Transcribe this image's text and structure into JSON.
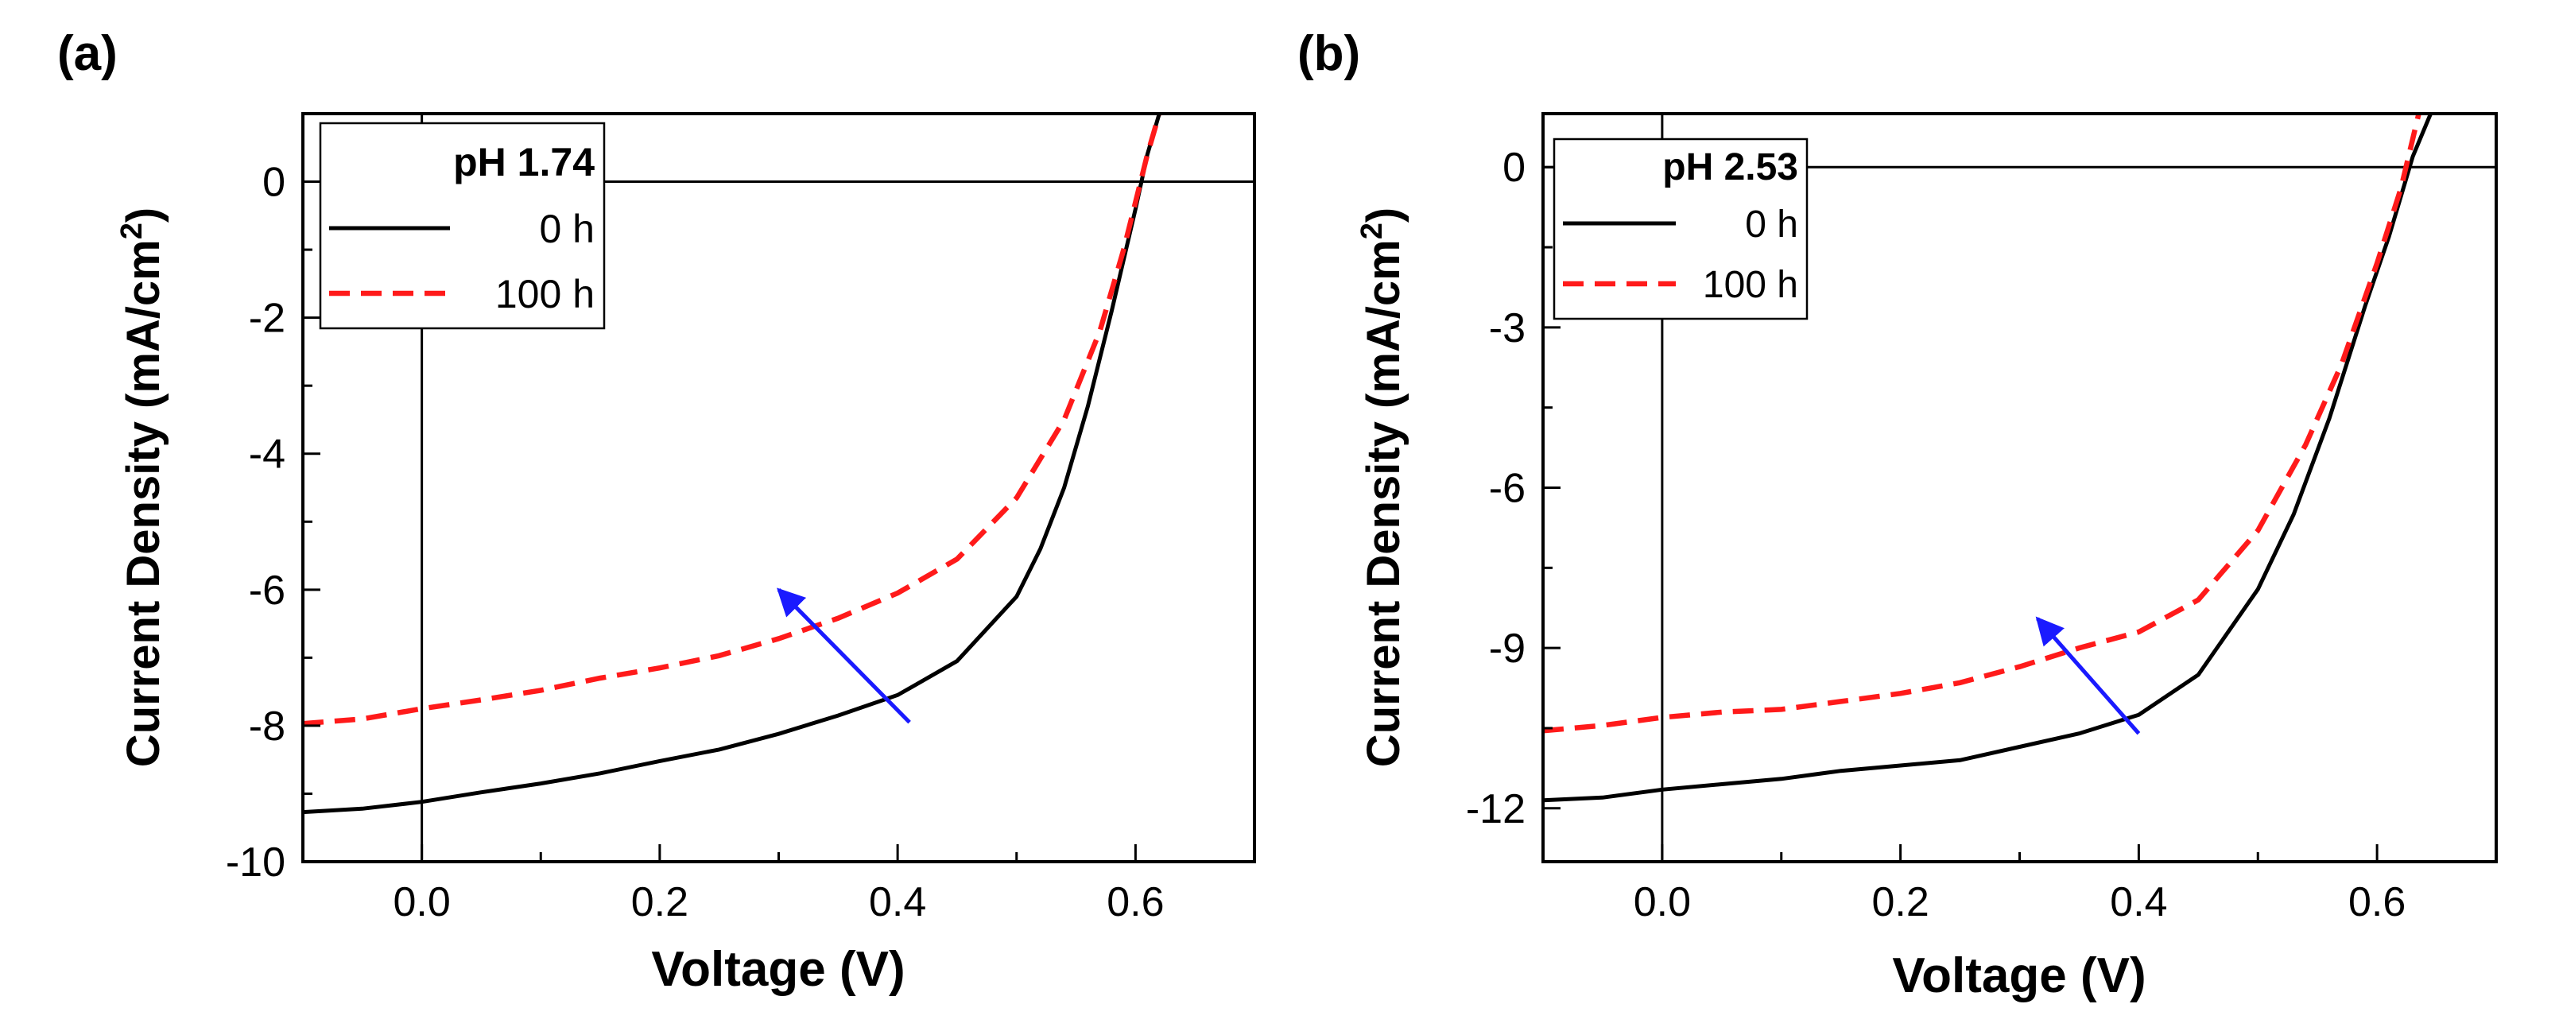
{
  "chart_data": [
    {
      "type": "line",
      "panel_label": "(a)",
      "xlabel": "Voltage (V)",
      "ylabel_main": "Current Density (mA/cm",
      "ylabel_sup": "2",
      "ylabel_end": ")",
      "xlim": [
        -0.1,
        0.7
      ],
      "ylim": [
        -10,
        1
      ],
      "xticks": [
        0.0,
        0.2,
        0.4,
        0.6
      ],
      "xtick_labels": [
        "0.0",
        "0.2",
        "0.4",
        "0.6"
      ],
      "yticks": [
        0,
        -2,
        -4,
        -6,
        -8,
        -10
      ],
      "ytick_labels": [
        "0",
        "-2",
        "-4",
        "-6",
        "-8",
        "-10"
      ],
      "legend_title": "pH 1.74",
      "legend_position": "top-left",
      "annotation": {
        "type": "arrow",
        "color": "#1a1aff",
        "from": [
          0.41,
          -7.95
        ],
        "to": [
          0.3,
          -6.0
        ]
      },
      "series": [
        {
          "name": "0 h",
          "color": "#000000",
          "style": "solid",
          "x": [
            -0.1,
            -0.05,
            0.0,
            0.05,
            0.1,
            0.15,
            0.2,
            0.25,
            0.3,
            0.35,
            0.4,
            0.45,
            0.5,
            0.52,
            0.54,
            0.56,
            0.58,
            0.6,
            0.61,
            0.62
          ],
          "y": [
            -9.27,
            -9.22,
            -9.12,
            -8.98,
            -8.85,
            -8.7,
            -8.52,
            -8.35,
            -8.12,
            -7.85,
            -7.55,
            -7.05,
            -6.1,
            -5.4,
            -4.5,
            -3.3,
            -1.9,
            -0.4,
            0.4,
            1.0
          ]
        },
        {
          "name": "100 h",
          "color": "#ff1a1a",
          "style": "dashed",
          "x": [
            -0.1,
            -0.05,
            0.0,
            0.05,
            0.1,
            0.15,
            0.2,
            0.25,
            0.3,
            0.35,
            0.4,
            0.45,
            0.5,
            0.54,
            0.57,
            0.59,
            0.6,
            0.61,
            0.62
          ],
          "y": [
            -7.97,
            -7.9,
            -7.75,
            -7.62,
            -7.48,
            -7.3,
            -7.15,
            -6.97,
            -6.72,
            -6.42,
            -6.05,
            -5.55,
            -4.65,
            -3.5,
            -2.2,
            -1.0,
            -0.3,
            0.4,
            1.0
          ]
        }
      ]
    },
    {
      "type": "line",
      "panel_label": "(b)",
      "xlabel": "Voltage (V)",
      "ylabel_main": "Current Density (mA/cm",
      "ylabel_sup": "2",
      "ylabel_end": ")",
      "xlim": [
        -0.1,
        0.7
      ],
      "ylim": [
        -13,
        1
      ],
      "xticks": [
        0.0,
        0.2,
        0.4,
        0.6
      ],
      "xtick_labels": [
        "0.0",
        "0.2",
        "0.4",
        "0.6"
      ],
      "yticks": [
        0,
        -3,
        -6,
        -9,
        -12
      ],
      "ytick_labels": [
        "0",
        "-3",
        "-6",
        "-9",
        "-12"
      ],
      "legend_title": "pH 2.53",
      "legend_position": "top-left",
      "annotation": {
        "type": "arrow",
        "color": "#1a1aff",
        "from": [
          0.4,
          -10.6
        ],
        "to": [
          0.315,
          -8.45
        ]
      },
      "series": [
        {
          "name": "0 h",
          "color": "#000000",
          "style": "solid",
          "x": [
            -0.1,
            -0.05,
            0.0,
            0.05,
            0.1,
            0.15,
            0.2,
            0.25,
            0.3,
            0.35,
            0.4,
            0.45,
            0.5,
            0.53,
            0.56,
            0.59,
            0.61,
            0.63,
            0.645
          ],
          "y": [
            -11.85,
            -11.8,
            -11.65,
            -11.55,
            -11.45,
            -11.3,
            -11.2,
            -11.1,
            -10.85,
            -10.6,
            -10.25,
            -9.5,
            -7.9,
            -6.5,
            -4.7,
            -2.6,
            -1.3,
            0.2,
            1.0
          ]
        },
        {
          "name": "100 h",
          "color": "#ff1a1a",
          "style": "dashed",
          "x": [
            -0.1,
            -0.05,
            0.0,
            0.05,
            0.1,
            0.15,
            0.2,
            0.25,
            0.3,
            0.35,
            0.4,
            0.45,
            0.5,
            0.54,
            0.57,
            0.6,
            0.62,
            0.635
          ],
          "y": [
            -10.55,
            -10.45,
            -10.3,
            -10.2,
            -10.15,
            -10.0,
            -9.85,
            -9.65,
            -9.35,
            -9.0,
            -8.7,
            -8.1,
            -6.8,
            -5.2,
            -3.7,
            -1.8,
            -0.4,
            1.0
          ]
        }
      ]
    }
  ]
}
